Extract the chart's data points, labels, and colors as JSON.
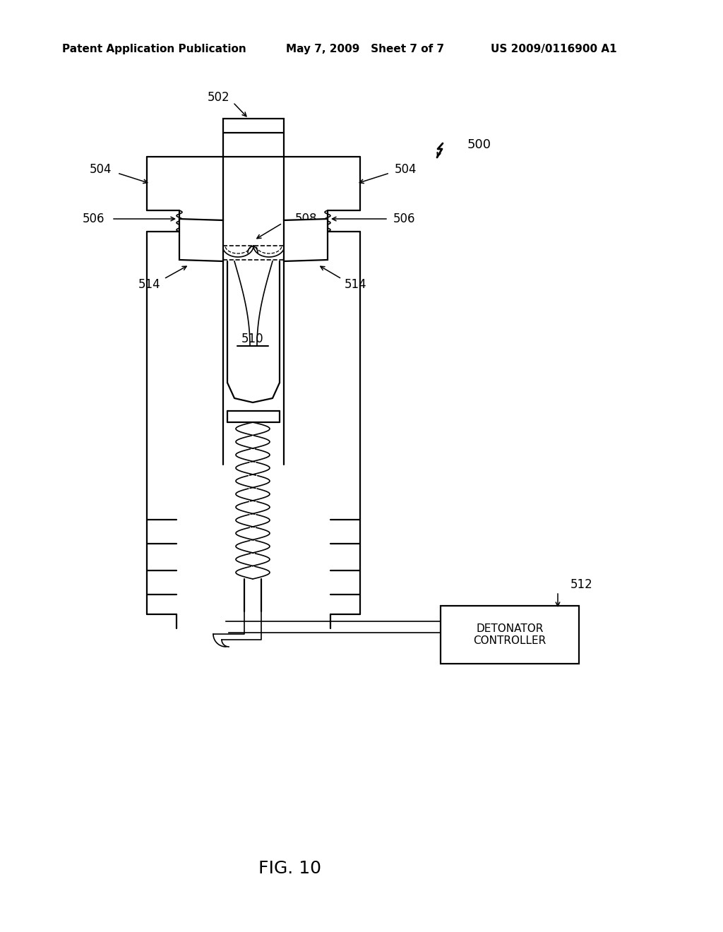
{
  "header_left": "Patent Application Publication",
  "header_mid": "May 7, 2009   Sheet 7 of 7",
  "header_right": "US 2009/0116900 A1",
  "fig_caption": "FIG. 10",
  "lbl_500": "500",
  "lbl_502": "502",
  "lbl_504": "504",
  "lbl_506": "506",
  "lbl_508": "508",
  "lbl_510": "510",
  "lbl_512": "512",
  "lbl_514": "514",
  "lbl_det": "DETONATOR\nCONTROLLER",
  "bg": "#ffffff"
}
